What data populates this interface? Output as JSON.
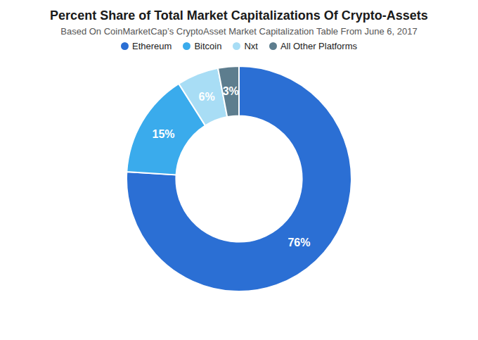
{
  "chart_data": {
    "type": "donut",
    "title": "Percent Share of Total Market Capitalizations Of Crypto-Assets",
    "subtitle": "Based On CoinMarketCap’s CryptoAsset Market Capitalization Table From June 6, 2017",
    "categories": [
      "Ethereum",
      "Bitcoin",
      "Nxt",
      "All Other Platforms"
    ],
    "values": [
      76,
      15,
      6,
      3
    ],
    "value_labels": [
      "76%",
      "15%",
      "6%",
      "3%"
    ],
    "colors": [
      "#2b6fd4",
      "#3aabec",
      "#a8ddf5",
      "#5d7d8e"
    ],
    "data_labels": true,
    "legend": "top"
  }
}
